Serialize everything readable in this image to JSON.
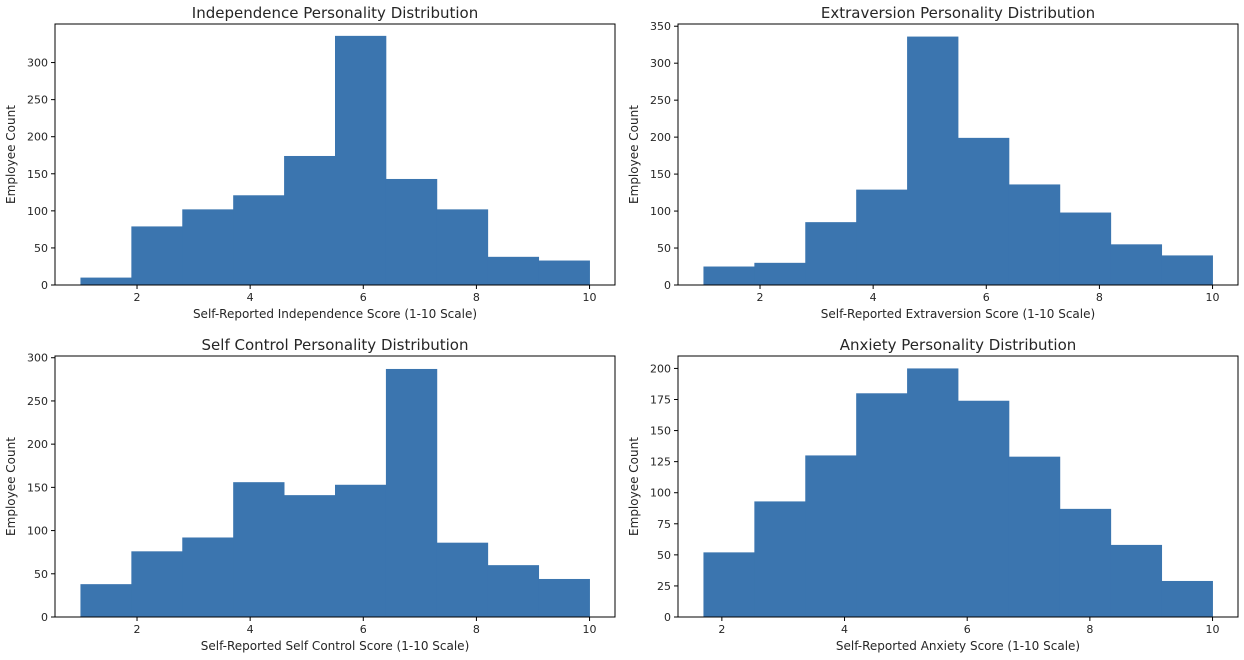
{
  "chart_data": [
    {
      "type": "bar",
      "title": "Independence Personality Distribution",
      "xlabel": "Self-Reported Independence Score (1-10 Scale)",
      "ylabel": "Employee Count",
      "bin_edges": [
        1.0,
        1.9,
        2.8,
        3.7,
        4.6,
        5.5,
        6.4,
        7.3,
        8.2,
        9.1,
        10.0
      ],
      "values": [
        10,
        79,
        102,
        121,
        174,
        336,
        143,
        102,
        38,
        33
      ],
      "xlim": [
        0.55,
        10.45
      ],
      "ylim": [
        0,
        352
      ],
      "xticks": [
        2,
        4,
        6,
        8,
        10
      ],
      "yticks": [
        0,
        50,
        100,
        150,
        200,
        250,
        300
      ],
      "color": "#3b75af",
      "grid": false
    },
    {
      "type": "bar",
      "title": "Extraversion Personality Distribution",
      "xlabel": "Self-Reported Extraversion Score (1-10 Scale)",
      "ylabel": "Employee Count",
      "bin_edges": [
        1.0,
        1.9,
        2.8,
        3.7,
        4.6,
        5.5,
        6.4,
        7.3,
        8.2,
        9.1,
        10.0
      ],
      "values": [
        25,
        30,
        85,
        129,
        336,
        199,
        136,
        98,
        55,
        40
      ],
      "xlim": [
        0.55,
        10.45
      ],
      "ylim": [
        0,
        353
      ],
      "xticks": [
        2,
        4,
        6,
        8,
        10
      ],
      "yticks": [
        0,
        50,
        100,
        150,
        200,
        250,
        300,
        350
      ],
      "color": "#3b75af",
      "grid": false
    },
    {
      "type": "bar",
      "title": "Self Control Personality Distribution",
      "xlabel": "Self-Reported Self Control Score (1-10 Scale)",
      "ylabel": "Employee Count",
      "bin_edges": [
        1.0,
        1.9,
        2.8,
        3.7,
        4.6,
        5.5,
        6.4,
        7.3,
        8.2,
        9.1,
        10.0
      ],
      "values": [
        38,
        76,
        92,
        156,
        141,
        153,
        287,
        86,
        60,
        44
      ],
      "xlim": [
        0.55,
        10.45
      ],
      "ylim": [
        0,
        302
      ],
      "xticks": [
        2,
        4,
        6,
        8,
        10
      ],
      "yticks": [
        0,
        50,
        100,
        150,
        200,
        250,
        300
      ],
      "color": "#3b75af",
      "grid": false
    },
    {
      "type": "bar",
      "title": "Anxiety Personality Distribution",
      "xlabel": "Self-Reported Anxiety Score (1-10 Scale)",
      "ylabel": "Employee Count",
      "bin_edges": [
        1.7,
        2.53,
        3.36,
        4.19,
        5.02,
        5.85,
        6.68,
        7.51,
        8.34,
        9.17,
        10.0
      ],
      "values": [
        52,
        93,
        130,
        180,
        200,
        174,
        129,
        87,
        58,
        29
      ],
      "xlim": [
        1.285,
        10.415
      ],
      "ylim": [
        0,
        210
      ],
      "xticks": [
        2,
        4,
        6,
        8,
        10
      ],
      "yticks": [
        0,
        25,
        50,
        75,
        100,
        125,
        150,
        175,
        200
      ],
      "color": "#3b75af",
      "grid": false
    }
  ]
}
